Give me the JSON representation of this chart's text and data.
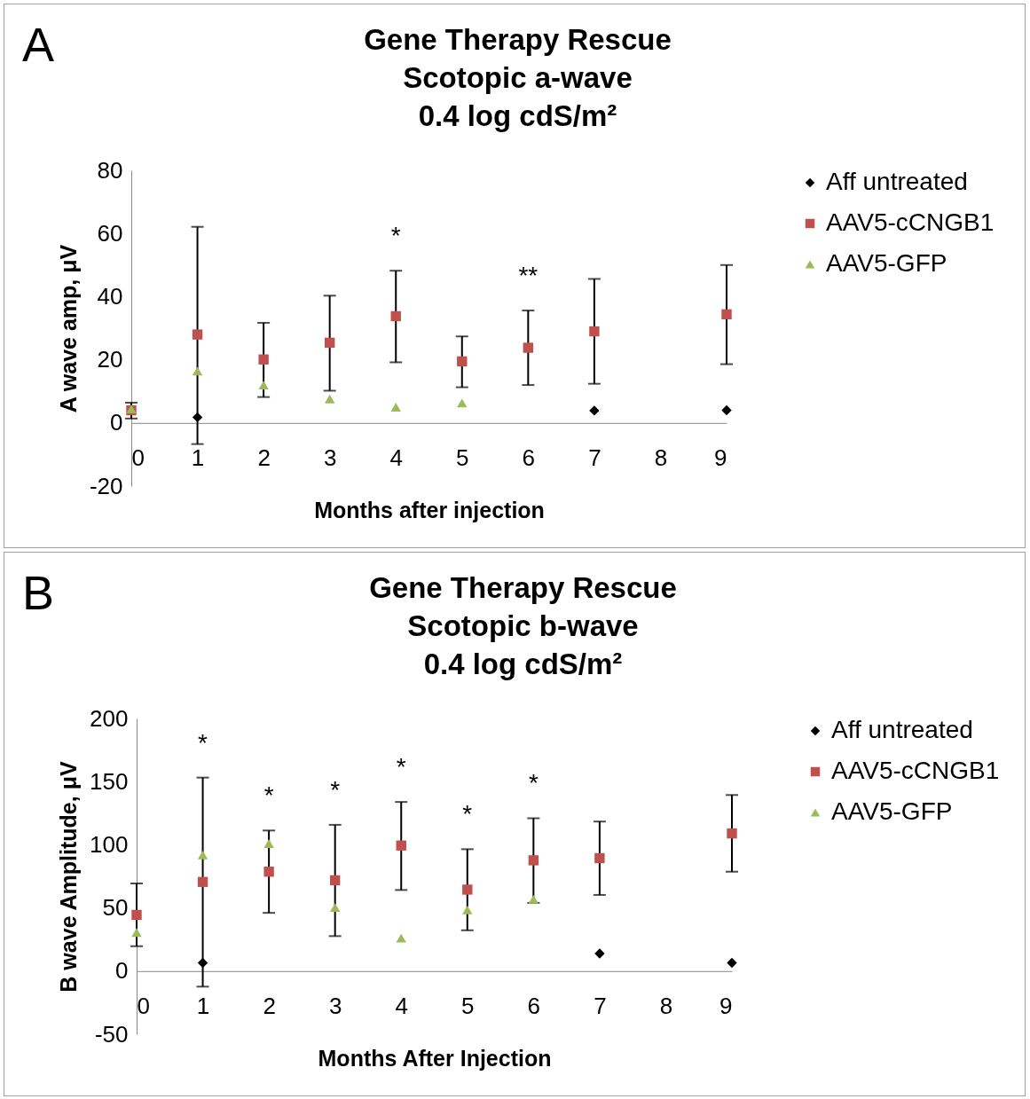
{
  "chart_data": [
    {
      "type": "scatter",
      "title": "Gene Therapy Rescue\nScotopic a-wave\n0.4 log cdS/m²",
      "xlabel": "Months after injection",
      "ylabel": "A wave amp, μV",
      "xlim": [
        0,
        9
      ],
      "xticks": [
        0,
        1,
        2,
        3,
        4,
        5,
        6,
        7,
        8,
        9
      ],
      "ylim": [
        -20,
        80
      ],
      "yticks": [
        -20,
        0,
        20,
        40,
        60,
        80
      ],
      "grid": false,
      "legend": "right",
      "annotations": [
        "A",
        {
          "text": "*",
          "x": 4,
          "y": 48.2
        },
        {
          "text": "**",
          "x": 6,
          "y": 35.6
        }
      ],
      "series": [
        {
          "name": "Aff untreated",
          "color": "#000000",
          "marker": "diamond",
          "x": [
            1,
            7,
            9
          ],
          "values": [
            1.8,
            3.9,
            4.0
          ]
        },
        {
          "name": "AAV5-cCNGB1",
          "color": "#c0504d",
          "marker": "square",
          "x": [
            0,
            1,
            2,
            3,
            4,
            5,
            6,
            7,
            9
          ],
          "values": [
            4.0,
            28.0,
            20.1,
            25.4,
            33.8,
            19.5,
            23.8,
            29.0,
            34.4
          ],
          "errors": [
            [
              1.4,
              6.4
            ],
            [
              -6.7,
              62.1
            ],
            [
              8.2,
              31.7
            ],
            [
              10.2,
              40.3
            ],
            [
              19.2,
              48.2
            ],
            [
              11.3,
              27.4
            ],
            [
              12.0,
              35.6
            ],
            [
              12.4,
              45.6
            ],
            [
              18.6,
              50.0
            ]
          ]
        },
        {
          "name": "AAV5-GFP",
          "color": "#9bbb59",
          "marker": "triangle",
          "x": [
            0,
            1,
            2,
            3,
            4,
            5
          ],
          "values": [
            4.4,
            16.4,
            12.0,
            7.6,
            5.0,
            6.3
          ]
        }
      ]
    },
    {
      "type": "scatter",
      "title": "Gene Therapy Rescue\nScotopic b-wave\n0.4 log cdS/m²",
      "xlabel": "Months After Injection",
      "ylabel": "B wave Amplitude, μV",
      "xlim": [
        0,
        9
      ],
      "xticks": [
        0,
        1,
        2,
        3,
        4,
        5,
        6,
        7,
        8,
        9
      ],
      "ylim": [
        -50,
        200
      ],
      "yticks": [
        -50,
        0,
        50,
        100,
        150,
        200
      ],
      "grid": false,
      "legend": "right",
      "annotations": [
        "B",
        {
          "text": "*",
          "x": 1,
          "y": 153.2
        },
        {
          "text": "*",
          "x": 2,
          "y": 111.3
        },
        {
          "text": "*",
          "x": 3,
          "y": 115.8
        },
        {
          "text": "*",
          "x": 4,
          "y": 133.9
        },
        {
          "text": "*",
          "x": 5,
          "y": 96.5
        },
        {
          "text": "*",
          "x": 6,
          "y": 121.0
        }
      ],
      "series": [
        {
          "name": "Aff untreated",
          "color": "#000000",
          "marker": "diamond",
          "x": [
            1,
            7,
            9
          ],
          "values": [
            6.5,
            13.9,
            6.5
          ]
        },
        {
          "name": "AAV5-cCNGB1",
          "color": "#c0504d",
          "marker": "square",
          "x": [
            0,
            1,
            2,
            3,
            4,
            5,
            6,
            7,
            9
          ],
          "values": [
            44.5,
            70.6,
            78.7,
            71.9,
            99.4,
            64.5,
            87.7,
            89.4,
            109.0
          ],
          "errors": [
            [
              19.7,
              69.4
            ],
            [
              -12.3,
              153.2
            ],
            [
              46.1,
              111.3
            ],
            [
              27.7,
              115.8
            ],
            [
              64.2,
              133.9
            ],
            [
              32.3,
              96.5
            ],
            [
              54,
              121.0
            ],
            [
              60.3,
              118.4
            ],
            [
              78.7,
              139.4
            ]
          ]
        },
        {
          "name": "AAV5-GFP",
          "color": "#9bbb59",
          "marker": "triangle",
          "x": [
            0,
            1,
            2,
            3,
            4,
            5,
            6
          ],
          "values": [
            30.6,
            91.9,
            101,
            50.3,
            26.1,
            48.4,
            56.8
          ]
        }
      ]
    }
  ]
}
